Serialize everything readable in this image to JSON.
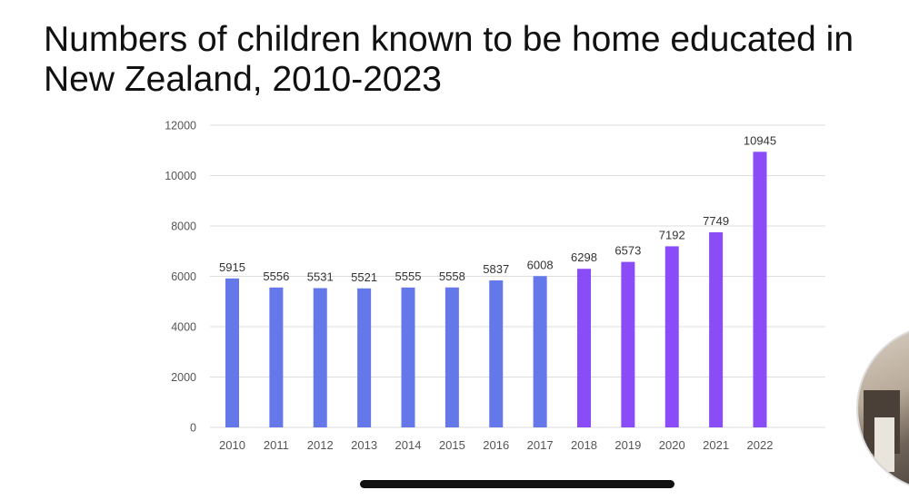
{
  "chart_data": {
    "type": "bar",
    "title": "Numbers of children known to be home educated in\nNew Zealand, 2010-2023",
    "xlabel": "",
    "ylabel": "",
    "ylim": [
      0,
      12000
    ],
    "yticks": [
      0,
      2000,
      4000,
      6000,
      8000,
      10000,
      12000
    ],
    "grid": true,
    "legend": "none",
    "categories": [
      "2010",
      "2011",
      "2012",
      "2013",
      "2014",
      "2015",
      "2016",
      "2017",
      "2018",
      "2019",
      "2020",
      "2021",
      "2022"
    ],
    "values": [
      5915,
      5556,
      5531,
      5521,
      5555,
      5558,
      5837,
      6008,
      6298,
      6573,
      7192,
      7749,
      10945
    ],
    "bar_colors": [
      "#6478ea",
      "#6478ea",
      "#6478ea",
      "#6478ea",
      "#6478ea",
      "#6478ea",
      "#6478ea",
      "#6478ea",
      "#8a4cf7",
      "#8a4cf7",
      "#8a4cf7",
      "#8a4cf7",
      "#8a4cf7"
    ]
  },
  "colors": {
    "grid": "#dddddd",
    "axis_text": "#555555",
    "label_text": "#333333"
  },
  "overlay": {
    "webcam_icon": "webcam-video-icon",
    "home_indicator": "home-indicator-bar"
  }
}
